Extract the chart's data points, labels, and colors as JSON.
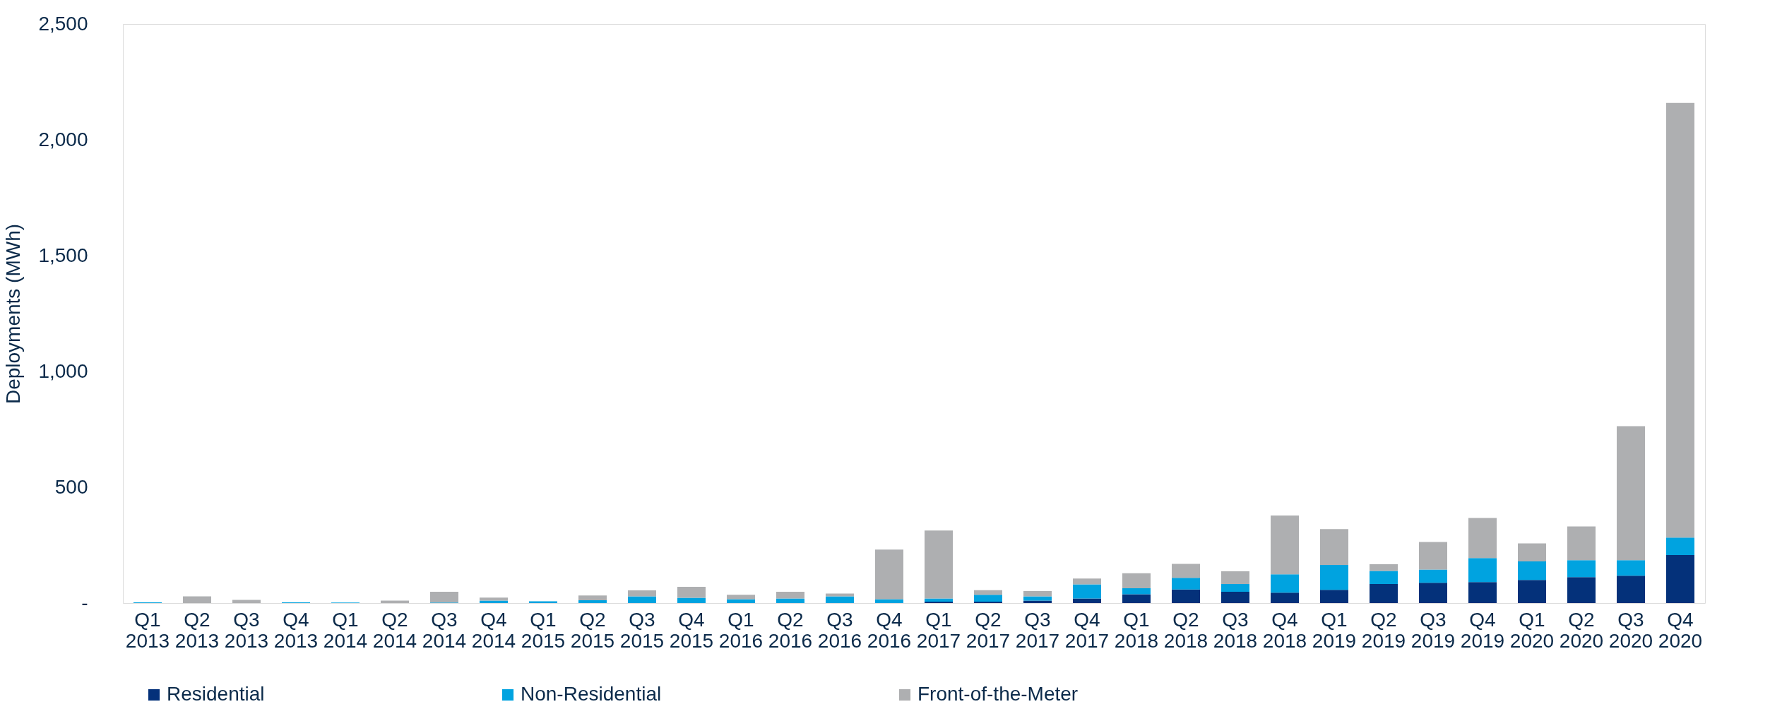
{
  "chart_data": {
    "type": "bar",
    "stacked": true,
    "ylabel": "Deployments (MWh)",
    "categories": [
      "Q1 2013",
      "Q2 2013",
      "Q3 2013",
      "Q4 2013",
      "Q1 2014",
      "Q2 2014",
      "Q3 2014",
      "Q4 2014",
      "Q1 2015",
      "Q2 2015",
      "Q3 2015",
      "Q4 2015",
      "Q1 2016",
      "Q2 2016",
      "Q3 2016",
      "Q4 2016",
      "Q1 2017",
      "Q2 2017",
      "Q3 2017",
      "Q4 2017",
      "Q1 2018",
      "Q2 2018",
      "Q3 2018",
      "Q4 2018",
      "Q1 2019",
      "Q2 2019",
      "Q3 2019",
      "Q4 2019",
      "Q1 2020",
      "Q2 2020",
      "Q3 2020",
      "Q4 2020"
    ],
    "series": [
      {
        "name": "Residential",
        "color": "#04317a",
        "values": [
          0,
          0,
          0,
          0,
          0,
          0,
          0,
          0,
          0,
          0,
          0,
          0,
          0,
          0,
          0,
          0,
          6,
          6,
          11,
          20,
          38,
          59,
          49,
          45,
          57,
          82,
          88,
          91,
          100,
          112,
          118,
          207
        ]
      },
      {
        "name": "Non-Residential",
        "color": "#00a3e0",
        "values": [
          3,
          null,
          null,
          3,
          2,
          null,
          2,
          11,
          8,
          12,
          29,
          23,
          17,
          20,
          29,
          17,
          14,
          30,
          18,
          61,
          26,
          50,
          33,
          79,
          108,
          57,
          57,
          103,
          80,
          73,
          67,
          76
        ]
      },
      {
        "name": "Front-of-the-Meter",
        "color": "#aeafb1",
        "values": [
          0,
          29,
          14,
          0,
          null,
          11,
          47,
          13,
          null,
          21,
          26,
          47,
          19,
          29,
          12,
          214,
          293,
          20,
          23,
          25,
          65,
          60,
          55,
          254,
          154,
          29,
          119,
          173,
          78,
          146,
          579,
          1876
        ]
      }
    ],
    "ylim": [
      0,
      2500
    ],
    "yticks": [
      {
        "value": 0,
        "label": "-"
      },
      500,
      {
        "value": 1000,
        "label": "1,000"
      },
      {
        "value": 1500,
        "label": "1,500"
      },
      {
        "value": 2000,
        "label": "2,000"
      },
      {
        "value": 2500,
        "label": "2,500"
      }
    ],
    "grid": false,
    "legend": "bottom"
  }
}
